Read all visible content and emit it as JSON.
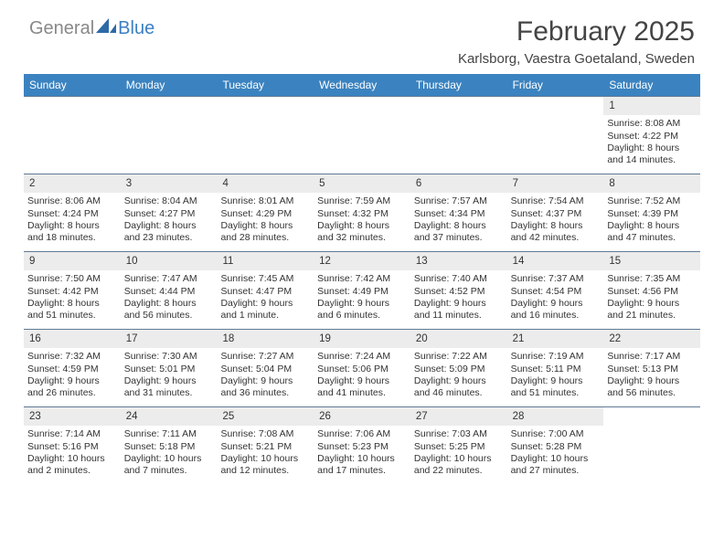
{
  "logo": {
    "text_left": "General",
    "text_right": "Blue"
  },
  "title": {
    "month": "February 2025",
    "location": "Karlsborg, Vaestra Goetaland, Sweden"
  },
  "colors": {
    "header_bar": "#3b83c0",
    "header_text": "#ffffff",
    "day_number_bg": "#ececec",
    "week_border": "#5f7a94",
    "logo_blue": "#3b7fc4"
  },
  "typography": {
    "title_fontsize": 30,
    "location_fontsize": 15,
    "dow_fontsize": 12,
    "cell_fontsize": 10.5
  },
  "days_of_week": [
    "Sunday",
    "Monday",
    "Tuesday",
    "Wednesday",
    "Thursday",
    "Friday",
    "Saturday"
  ],
  "weeks": [
    [
      null,
      null,
      null,
      null,
      null,
      null,
      {
        "n": "1",
        "sunrise": "Sunrise: 8:08 AM",
        "sunset": "Sunset: 4:22 PM",
        "dl1": "Daylight: 8 hours",
        "dl2": "and 14 minutes."
      }
    ],
    [
      {
        "n": "2",
        "sunrise": "Sunrise: 8:06 AM",
        "sunset": "Sunset: 4:24 PM",
        "dl1": "Daylight: 8 hours",
        "dl2": "and 18 minutes."
      },
      {
        "n": "3",
        "sunrise": "Sunrise: 8:04 AM",
        "sunset": "Sunset: 4:27 PM",
        "dl1": "Daylight: 8 hours",
        "dl2": "and 23 minutes."
      },
      {
        "n": "4",
        "sunrise": "Sunrise: 8:01 AM",
        "sunset": "Sunset: 4:29 PM",
        "dl1": "Daylight: 8 hours",
        "dl2": "and 28 minutes."
      },
      {
        "n": "5",
        "sunrise": "Sunrise: 7:59 AM",
        "sunset": "Sunset: 4:32 PM",
        "dl1": "Daylight: 8 hours",
        "dl2": "and 32 minutes."
      },
      {
        "n": "6",
        "sunrise": "Sunrise: 7:57 AM",
        "sunset": "Sunset: 4:34 PM",
        "dl1": "Daylight: 8 hours",
        "dl2": "and 37 minutes."
      },
      {
        "n": "7",
        "sunrise": "Sunrise: 7:54 AM",
        "sunset": "Sunset: 4:37 PM",
        "dl1": "Daylight: 8 hours",
        "dl2": "and 42 minutes."
      },
      {
        "n": "8",
        "sunrise": "Sunrise: 7:52 AM",
        "sunset": "Sunset: 4:39 PM",
        "dl1": "Daylight: 8 hours",
        "dl2": "and 47 minutes."
      }
    ],
    [
      {
        "n": "9",
        "sunrise": "Sunrise: 7:50 AM",
        "sunset": "Sunset: 4:42 PM",
        "dl1": "Daylight: 8 hours",
        "dl2": "and 51 minutes."
      },
      {
        "n": "10",
        "sunrise": "Sunrise: 7:47 AM",
        "sunset": "Sunset: 4:44 PM",
        "dl1": "Daylight: 8 hours",
        "dl2": "and 56 minutes."
      },
      {
        "n": "11",
        "sunrise": "Sunrise: 7:45 AM",
        "sunset": "Sunset: 4:47 PM",
        "dl1": "Daylight: 9 hours",
        "dl2": "and 1 minute."
      },
      {
        "n": "12",
        "sunrise": "Sunrise: 7:42 AM",
        "sunset": "Sunset: 4:49 PM",
        "dl1": "Daylight: 9 hours",
        "dl2": "and 6 minutes."
      },
      {
        "n": "13",
        "sunrise": "Sunrise: 7:40 AM",
        "sunset": "Sunset: 4:52 PM",
        "dl1": "Daylight: 9 hours",
        "dl2": "and 11 minutes."
      },
      {
        "n": "14",
        "sunrise": "Sunrise: 7:37 AM",
        "sunset": "Sunset: 4:54 PM",
        "dl1": "Daylight: 9 hours",
        "dl2": "and 16 minutes."
      },
      {
        "n": "15",
        "sunrise": "Sunrise: 7:35 AM",
        "sunset": "Sunset: 4:56 PM",
        "dl1": "Daylight: 9 hours",
        "dl2": "and 21 minutes."
      }
    ],
    [
      {
        "n": "16",
        "sunrise": "Sunrise: 7:32 AM",
        "sunset": "Sunset: 4:59 PM",
        "dl1": "Daylight: 9 hours",
        "dl2": "and 26 minutes."
      },
      {
        "n": "17",
        "sunrise": "Sunrise: 7:30 AM",
        "sunset": "Sunset: 5:01 PM",
        "dl1": "Daylight: 9 hours",
        "dl2": "and 31 minutes."
      },
      {
        "n": "18",
        "sunrise": "Sunrise: 7:27 AM",
        "sunset": "Sunset: 5:04 PM",
        "dl1": "Daylight: 9 hours",
        "dl2": "and 36 minutes."
      },
      {
        "n": "19",
        "sunrise": "Sunrise: 7:24 AM",
        "sunset": "Sunset: 5:06 PM",
        "dl1": "Daylight: 9 hours",
        "dl2": "and 41 minutes."
      },
      {
        "n": "20",
        "sunrise": "Sunrise: 7:22 AM",
        "sunset": "Sunset: 5:09 PM",
        "dl1": "Daylight: 9 hours",
        "dl2": "and 46 minutes."
      },
      {
        "n": "21",
        "sunrise": "Sunrise: 7:19 AM",
        "sunset": "Sunset: 5:11 PM",
        "dl1": "Daylight: 9 hours",
        "dl2": "and 51 minutes."
      },
      {
        "n": "22",
        "sunrise": "Sunrise: 7:17 AM",
        "sunset": "Sunset: 5:13 PM",
        "dl1": "Daylight: 9 hours",
        "dl2": "and 56 minutes."
      }
    ],
    [
      {
        "n": "23",
        "sunrise": "Sunrise: 7:14 AM",
        "sunset": "Sunset: 5:16 PM",
        "dl1": "Daylight: 10 hours",
        "dl2": "and 2 minutes."
      },
      {
        "n": "24",
        "sunrise": "Sunrise: 7:11 AM",
        "sunset": "Sunset: 5:18 PM",
        "dl1": "Daylight: 10 hours",
        "dl2": "and 7 minutes."
      },
      {
        "n": "25",
        "sunrise": "Sunrise: 7:08 AM",
        "sunset": "Sunset: 5:21 PM",
        "dl1": "Daylight: 10 hours",
        "dl2": "and 12 minutes."
      },
      {
        "n": "26",
        "sunrise": "Sunrise: 7:06 AM",
        "sunset": "Sunset: 5:23 PM",
        "dl1": "Daylight: 10 hours",
        "dl2": "and 17 minutes."
      },
      {
        "n": "27",
        "sunrise": "Sunrise: 7:03 AM",
        "sunset": "Sunset: 5:25 PM",
        "dl1": "Daylight: 10 hours",
        "dl2": "and 22 minutes."
      },
      {
        "n": "28",
        "sunrise": "Sunrise: 7:00 AM",
        "sunset": "Sunset: 5:28 PM",
        "dl1": "Daylight: 10 hours",
        "dl2": "and 27 minutes."
      },
      null
    ]
  ]
}
